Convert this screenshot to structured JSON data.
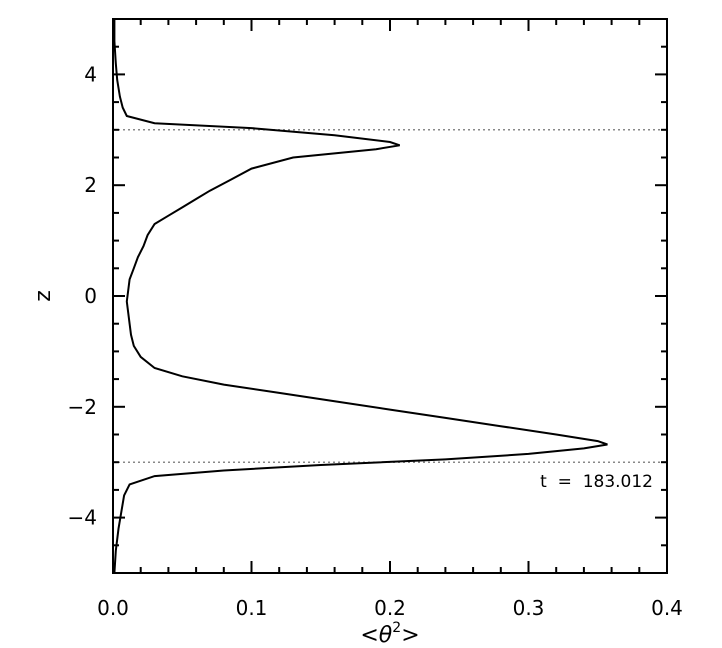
{
  "chart_data": {
    "type": "line",
    "xlabel_prefix": "<θ",
    "xlabel_sup": "2",
    "xlabel_suffix": ">",
    "ylabel": "z",
    "xlim": [
      0.0,
      0.4
    ],
    "ylim": [
      -5,
      5
    ],
    "x_ticks": [
      0.0,
      0.1,
      0.2,
      0.3,
      0.4
    ],
    "x_tick_labels": [
      "0.0",
      "0.1",
      "0.2",
      "0.3",
      "0.4"
    ],
    "y_ticks": [
      -4,
      -2,
      0,
      2,
      4
    ],
    "y_tick_labels": [
      "−4",
      "−2",
      "0",
      "2",
      "4"
    ],
    "annotation": "t  =  183.012",
    "reference_lines": {
      "horizontal_z": [
        3,
        -3
      ],
      "vertical_x": [
        0.0
      ],
      "style": "dotted"
    },
    "series": [
      {
        "points": [
          [
            0.001,
            5.0
          ],
          [
            0.001,
            4.6
          ],
          [
            0.002,
            4.2
          ],
          [
            0.003,
            3.9
          ],
          [
            0.005,
            3.6
          ],
          [
            0.007,
            3.4
          ],
          [
            0.01,
            3.25
          ],
          [
            0.03,
            3.12
          ],
          [
            0.1,
            3.03
          ],
          [
            0.16,
            2.9
          ],
          [
            0.2,
            2.78
          ],
          [
            0.207,
            2.72
          ],
          [
            0.19,
            2.65
          ],
          [
            0.13,
            2.5
          ],
          [
            0.1,
            2.3
          ],
          [
            0.085,
            2.1
          ],
          [
            0.07,
            1.9
          ],
          [
            0.06,
            1.75
          ],
          [
            0.05,
            1.6
          ],
          [
            0.04,
            1.45
          ],
          [
            0.03,
            1.3
          ],
          [
            0.025,
            1.1
          ],
          [
            0.022,
            0.9
          ],
          [
            0.018,
            0.7
          ],
          [
            0.015,
            0.5
          ],
          [
            0.012,
            0.3
          ],
          [
            0.011,
            0.1
          ],
          [
            0.01,
            -0.1
          ],
          [
            0.011,
            -0.3
          ],
          [
            0.012,
            -0.5
          ],
          [
            0.013,
            -0.7
          ],
          [
            0.015,
            -0.9
          ],
          [
            0.02,
            -1.1
          ],
          [
            0.03,
            -1.3
          ],
          [
            0.05,
            -1.45
          ],
          [
            0.08,
            -1.6
          ],
          [
            0.12,
            -1.75
          ],
          [
            0.16,
            -1.9
          ],
          [
            0.2,
            -2.05
          ],
          [
            0.24,
            -2.2
          ],
          [
            0.28,
            -2.35
          ],
          [
            0.32,
            -2.5
          ],
          [
            0.35,
            -2.62
          ],
          [
            0.357,
            -2.68
          ],
          [
            0.34,
            -2.75
          ],
          [
            0.3,
            -2.85
          ],
          [
            0.24,
            -2.95
          ],
          [
            0.15,
            -3.05
          ],
          [
            0.08,
            -3.15
          ],
          [
            0.03,
            -3.25
          ],
          [
            0.012,
            -3.4
          ],
          [
            0.008,
            -3.6
          ],
          [
            0.006,
            -3.9
          ],
          [
            0.004,
            -4.2
          ],
          [
            0.002,
            -4.6
          ],
          [
            0.001,
            -5.0
          ]
        ]
      }
    ]
  }
}
